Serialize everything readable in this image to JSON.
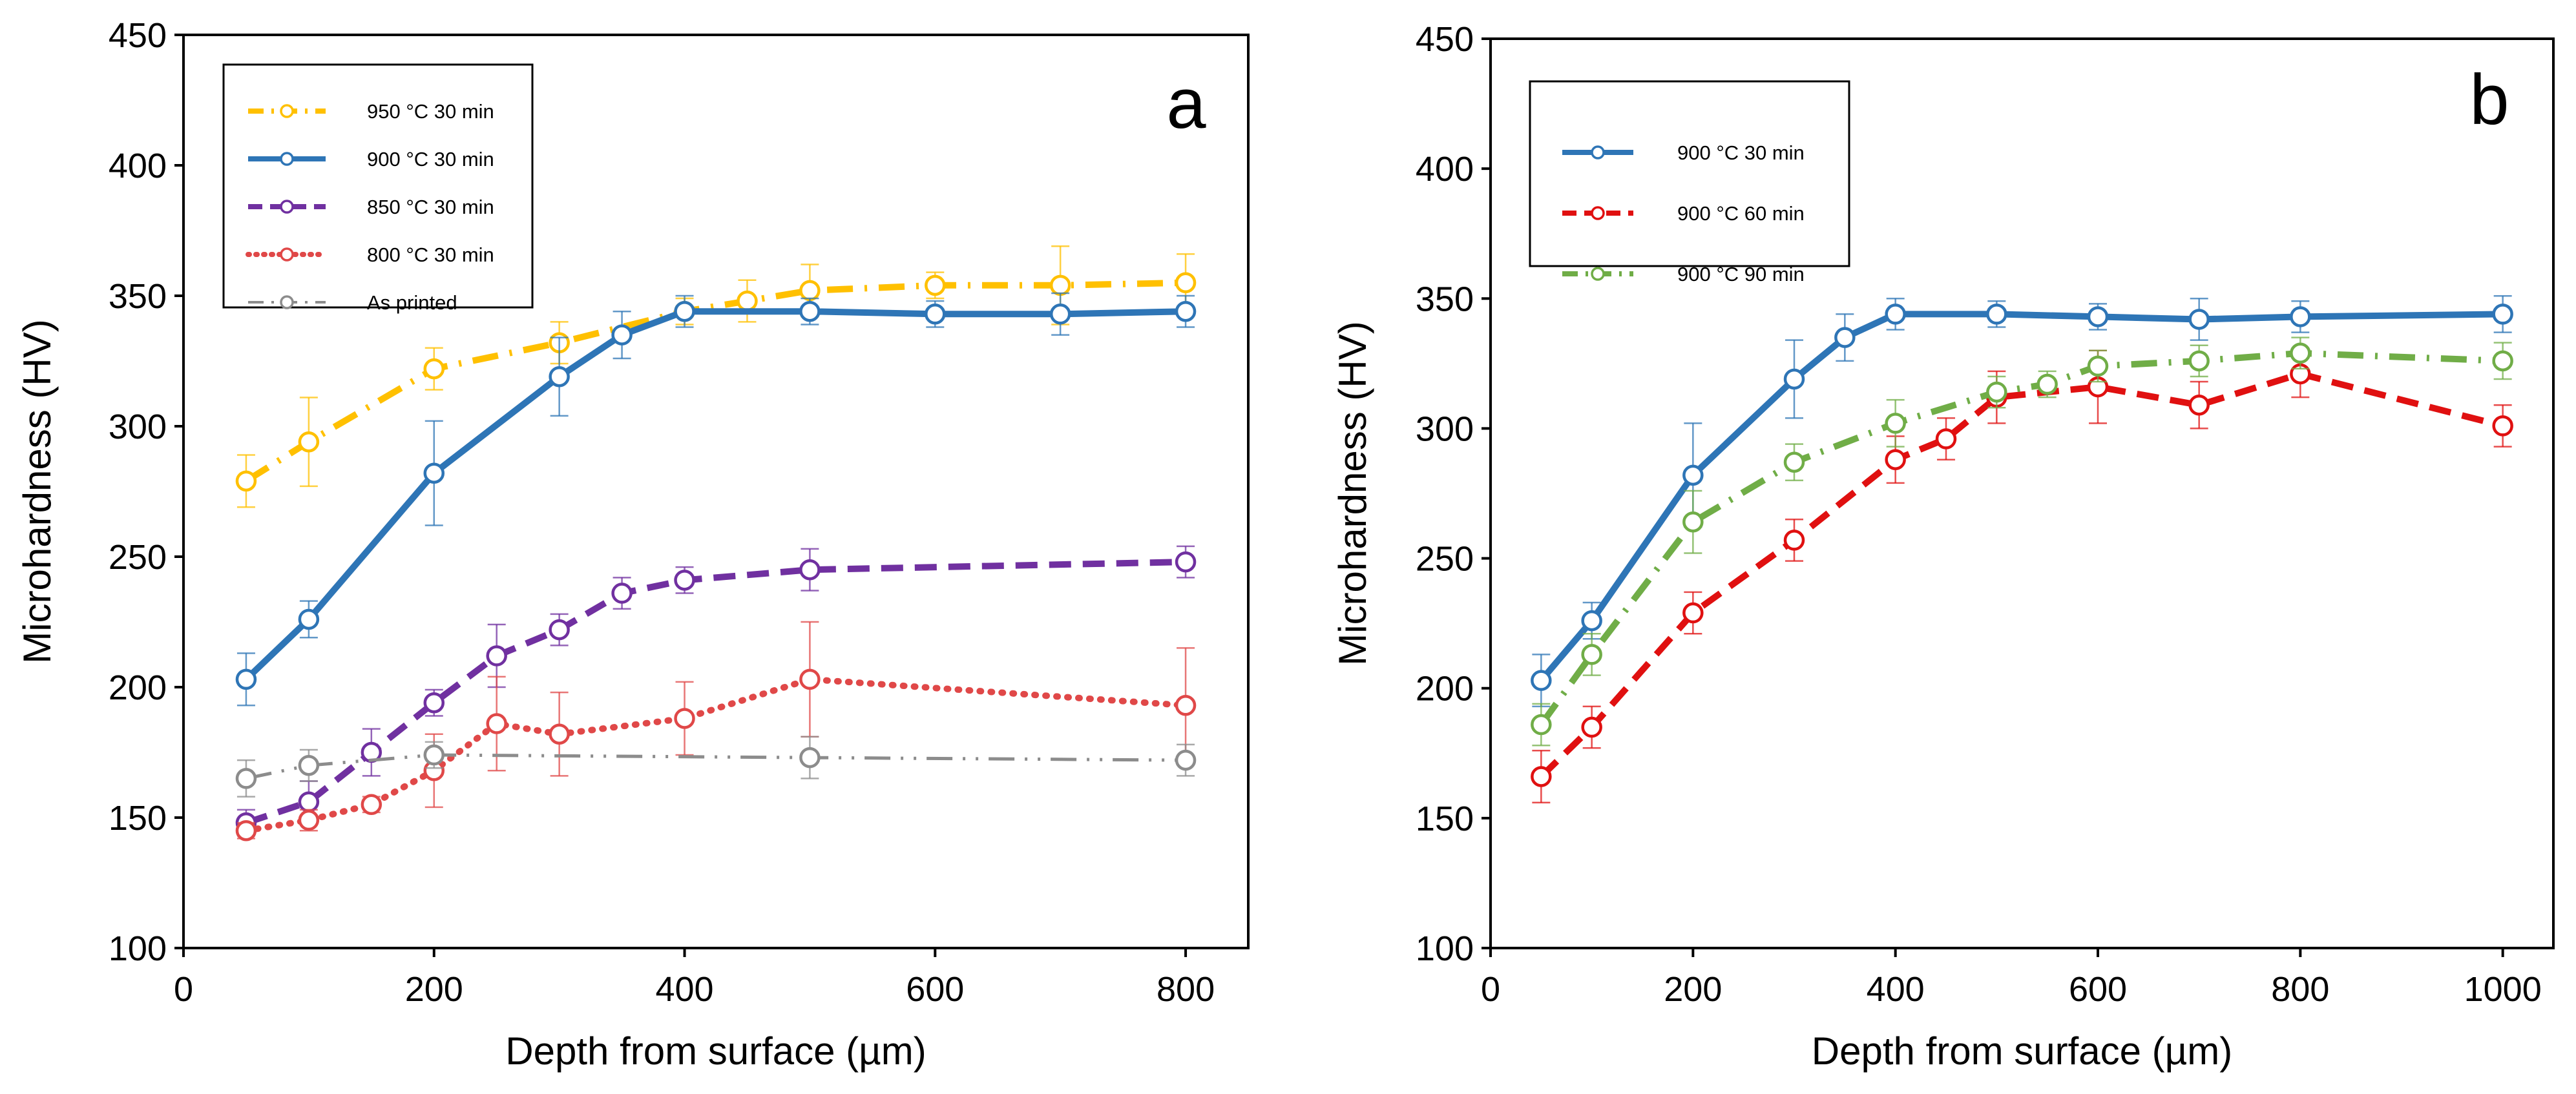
{
  "chart_data": [
    {
      "type": "line",
      "panel_label": "a",
      "xlabel": "Depth from surface (µm)",
      "ylabel": "Microhardness (HV)",
      "xlim": [
        0,
        850
      ],
      "ylim": [
        100,
        450
      ],
      "xticks": [
        0,
        200,
        400,
        600,
        800
      ],
      "yticks": [
        100,
        150,
        200,
        250,
        300,
        350,
        400,
        450
      ],
      "x_tick_labels": [
        "0",
        "200",
        "400",
        "600",
        "800"
      ],
      "y_tick_labels": [
        "100",
        "150",
        "200",
        "250",
        "300",
        "350",
        "400",
        "450"
      ],
      "grid": false,
      "legend_position": "top-left",
      "series": [
        {
          "name": "950 °C 30 min",
          "color": "#FFC000",
          "line_style": "dash-dot",
          "x": [
            50,
            100,
            200,
            300,
            400,
            450,
            500,
            600,
            700,
            800
          ],
          "y": [
            279,
            294,
            322,
            332,
            344,
            348,
            352,
            354,
            354,
            355
          ],
          "error": [
            10,
            17,
            8,
            8,
            5,
            8,
            10,
            5,
            15,
            11
          ]
        },
        {
          "name": "900 °C 30 min",
          "color": "#2E75B6",
          "line_style": "solid",
          "x": [
            50,
            100,
            200,
            300,
            350,
            400,
            500,
            600,
            700,
            800
          ],
          "y": [
            203,
            226,
            282,
            319,
            335,
            344,
            344,
            343,
            343,
            344
          ],
          "error": [
            10,
            7,
            20,
            15,
            9,
            6,
            5,
            5,
            8,
            6
          ]
        },
        {
          "name": "850 °C 30 min",
          "color": "#7030A0",
          "line_style": "dashed",
          "x": [
            50,
            100,
            150,
            200,
            250,
            300,
            350,
            400,
            500,
            800
          ],
          "y": [
            148,
            156,
            175,
            194,
            212,
            222,
            236,
            241,
            245,
            248
          ],
          "error": [
            5,
            8,
            9,
            5,
            12,
            6,
            6,
            5,
            8,
            6
          ]
        },
        {
          "name": "800 °C 30 min",
          "color": "#E04848",
          "line_style": "dotted",
          "x": [
            50,
            100,
            150,
            200,
            250,
            300,
            400,
            500,
            800
          ],
          "y": [
            145,
            149,
            155,
            168,
            186,
            182,
            188,
            203,
            193
          ],
          "error": [
            3,
            4,
            3,
            14,
            18,
            16,
            14,
            22,
            22
          ]
        },
        {
          "name": "As printed",
          "color": "#8C8C8C",
          "line_style": "dash-dot-dot",
          "x": [
            50,
            100,
            200,
            500,
            800
          ],
          "y": [
            165,
            170,
            174,
            173,
            172
          ],
          "error": [
            7,
            6,
            5,
            8,
            6
          ]
        }
      ]
    },
    {
      "type": "line",
      "panel_label": "b",
      "xlabel": "Depth from surface (µm)",
      "ylabel": "Microhardness (HV)",
      "xlim": [
        0,
        1050
      ],
      "ylim": [
        100,
        450
      ],
      "xticks": [
        0,
        200,
        400,
        600,
        800,
        1000
      ],
      "yticks": [
        100,
        150,
        200,
        250,
        300,
        350,
        400,
        450
      ],
      "x_tick_labels": [
        "0",
        "200",
        "400",
        "600",
        "800",
        "1000"
      ],
      "y_tick_labels": [
        "100",
        "150",
        "200",
        "250",
        "300",
        "350",
        "400",
        "450"
      ],
      "grid": false,
      "legend_position": "top-left",
      "series": [
        {
          "name": "900 °C 30 min",
          "color": "#2E75B6",
          "line_style": "solid",
          "x": [
            50,
            100,
            200,
            300,
            350,
            400,
            500,
            600,
            700,
            800,
            1000
          ],
          "y": [
            203,
            226,
            282,
            319,
            335,
            344,
            344,
            343,
            342,
            343,
            344
          ],
          "error": [
            10,
            7,
            20,
            15,
            9,
            6,
            5,
            5,
            8,
            6,
            7
          ]
        },
        {
          "name": "900 °C 60 min",
          "color": "#E01010",
          "line_style": "dashed",
          "x": [
            50,
            100,
            200,
            300,
            400,
            450,
            500,
            600,
            700,
            800,
            1000
          ],
          "y": [
            166,
            185,
            229,
            257,
            288,
            296,
            312,
            316,
            309,
            321,
            301
          ],
          "error": [
            10,
            8,
            8,
            8,
            9,
            8,
            10,
            14,
            9,
            9,
            8
          ]
        },
        {
          "name": "900 °C 90 min",
          "color": "#70AD47",
          "line_style": "dash-dot",
          "x": [
            50,
            100,
            200,
            300,
            400,
            500,
            550,
            600,
            700,
            800,
            1000
          ],
          "y": [
            186,
            213,
            264,
            287,
            302,
            314,
            317,
            324,
            326,
            329,
            326
          ],
          "error": [
            8,
            8,
            12,
            7,
            9,
            6,
            5,
            6,
            6,
            6,
            7
          ]
        }
      ]
    }
  ]
}
